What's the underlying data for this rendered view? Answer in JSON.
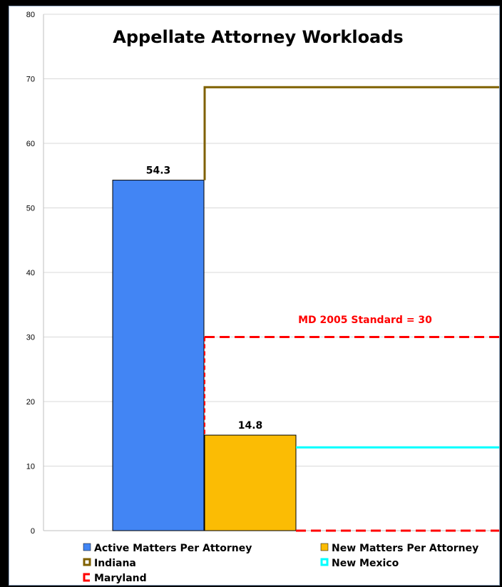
{
  "chart_data": {
    "type": "bar",
    "title": "Appellate Attorney Workloads",
    "categories": [
      ""
    ],
    "ylim": [
      0,
      80
    ],
    "yticks": [
      0,
      10,
      20,
      30,
      40,
      50,
      60,
      70,
      80
    ],
    "grid": true,
    "series": [
      {
        "name": "Active Matters Per Attorney",
        "values": [
          54.3
        ],
        "label": "54.3",
        "color": "#4285f4"
      },
      {
        "name": "New Matters Per Attorney",
        "values": [
          14.8
        ],
        "label": "14.8",
        "color": "#fbbc04"
      }
    ],
    "reference_lines": [
      {
        "name": "Indiana",
        "value": 68.7,
        "color": "#7f6000",
        "style": "solid"
      },
      {
        "name": "New Mexico",
        "value": 12.9,
        "color": "#00ffff",
        "style": "solid"
      },
      {
        "name": "Maryland",
        "value": 30,
        "color": "#ff0000",
        "style": "dashed"
      }
    ],
    "annotations": [
      {
        "text": "MD 2005 Standard = 30",
        "color": "#ff0000"
      }
    ],
    "legend_placement": "bottom"
  }
}
